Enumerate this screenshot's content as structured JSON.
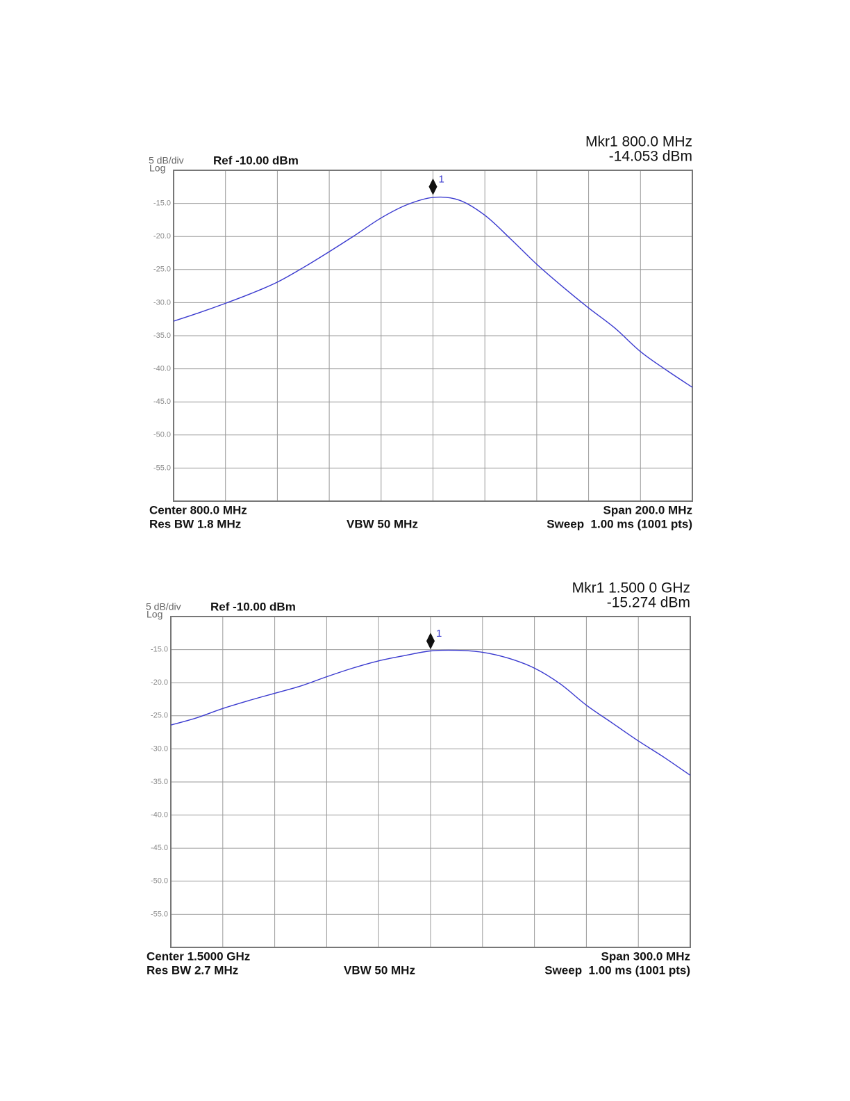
{
  "chart_data": [
    {
      "type": "line",
      "scale_label": "5 dB/div",
      "scale_type": "Log",
      "reference": "Ref -10.00 dBm",
      "marker_readout": [
        "Mkr1 800.0 MHz",
        "-14.053 dBm"
      ],
      "center": "Center 800.0 MHz",
      "res_bw": "Res BW 1.8 MHz",
      "vbw": "VBW 50 MHz",
      "span": "Span 200.0 MHz",
      "sweep": "Sweep  1.00 ms (1001 pts)",
      "x": [
        700,
        710,
        720,
        730,
        740,
        750,
        760,
        770,
        780,
        790,
        800,
        810,
        820,
        830,
        840,
        850,
        860,
        870,
        880,
        890,
        900
      ],
      "values": [
        -32.8,
        -31.5,
        -30.1,
        -28.6,
        -26.9,
        -24.7,
        -22.3,
        -19.8,
        -17.2,
        -15.2,
        -14.1,
        -14.5,
        -16.8,
        -20.4,
        -24.2,
        -27.6,
        -30.8,
        -33.8,
        -37.4,
        -40.2,
        -42.8
      ],
      "color": "#3a3acf",
      "marker": {
        "label": "1",
        "x": 800,
        "value": -14.053
      },
      "xlim": [
        700,
        900
      ],
      "ylim": [
        -60,
        -10
      ],
      "yticks": [
        {
          "value": -15,
          "label": "-15.0"
        },
        {
          "value": -20,
          "label": "-20.0"
        },
        {
          "value": -25,
          "label": "-25.0"
        },
        {
          "value": -30,
          "label": "-30.0"
        },
        {
          "value": -35,
          "label": "-35.0"
        },
        {
          "value": -40,
          "label": "-40.0"
        },
        {
          "value": -45,
          "label": "-45.0"
        },
        {
          "value": -50,
          "label": "-50.0"
        },
        {
          "value": -55,
          "label": "-55.0"
        }
      ],
      "grid": true
    },
    {
      "type": "line",
      "scale_label": "5 dB/div",
      "scale_type": "Log",
      "reference": "Ref -10.00 dBm",
      "marker_readout": [
        "Mkr1 1.500 0 GHz",
        "-15.274 dBm"
      ],
      "center": "Center 1.5000 GHz",
      "res_bw": "Res BW 2.7 MHz",
      "vbw": "VBW 50 MHz",
      "span": "Span 300.0 MHz",
      "sweep": "Sweep  1.00 ms (1001 pts)",
      "x": [
        1350,
        1365,
        1380,
        1395,
        1410,
        1425,
        1440,
        1455,
        1470,
        1485,
        1500,
        1515,
        1530,
        1545,
        1560,
        1575,
        1590,
        1605,
        1620,
        1635,
        1650
      ],
      "values": [
        -26.4,
        -25.3,
        -23.9,
        -22.7,
        -21.6,
        -20.5,
        -19.1,
        -17.8,
        -16.7,
        -15.9,
        -15.2,
        -15.1,
        -15.4,
        -16.3,
        -17.8,
        -20.2,
        -23.4,
        -26.1,
        -28.8,
        -31.3,
        -34.0
      ],
      "color": "#3a3acf",
      "marker": {
        "label": "1",
        "x": 1500,
        "value": -15.274
      },
      "xlim": [
        1350,
        1650
      ],
      "ylim": [
        -60,
        -10
      ],
      "yticks": [
        {
          "value": -15,
          "label": "-15.0"
        },
        {
          "value": -20,
          "label": "-20.0"
        },
        {
          "value": -25,
          "label": "-25.0"
        },
        {
          "value": -30,
          "label": "-30.0"
        },
        {
          "value": -35,
          "label": "-35.0"
        },
        {
          "value": -40,
          "label": "-40.0"
        },
        {
          "value": -45,
          "label": "-45.0"
        },
        {
          "value": -50,
          "label": "-50.0"
        },
        {
          "value": -55,
          "label": "-55.0"
        }
      ],
      "grid": true
    }
  ]
}
